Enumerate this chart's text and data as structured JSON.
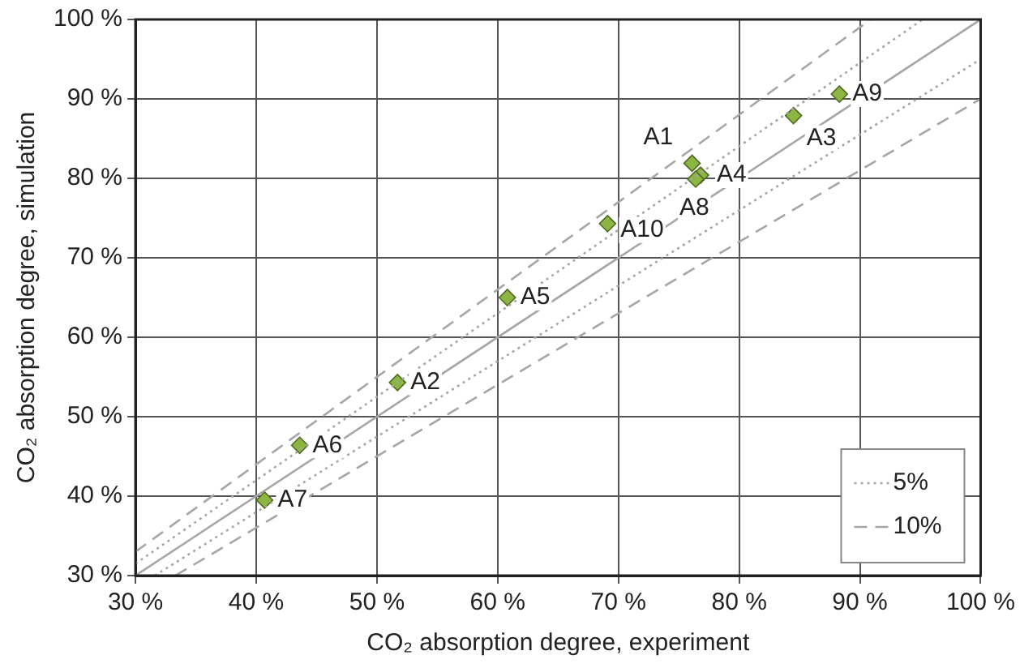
{
  "chart_data": {
    "type": "scatter",
    "xlabel": "CO₂ absorption degree, experiment",
    "ylabel": "CO₂ absorption degree, simulation",
    "xlim": [
      30,
      100
    ],
    "ylim": [
      30,
      100
    ],
    "xticks": [
      {
        "value": 30,
        "label": "30 %"
      },
      {
        "value": 40,
        "label": "40 %"
      },
      {
        "value": 50,
        "label": "50 %"
      },
      {
        "value": 60,
        "label": "60 %"
      },
      {
        "value": 70,
        "label": "70 %"
      },
      {
        "value": 80,
        "label": "80 %"
      },
      {
        "value": 90,
        "label": "90 %"
      },
      {
        "value": 100,
        "label": "100 %"
      }
    ],
    "yticks": [
      {
        "value": 30,
        "label": "30 %"
      },
      {
        "value": 40,
        "label": "40 %"
      },
      {
        "value": 50,
        "label": "50 %"
      },
      {
        "value": 60,
        "label": "60 %"
      },
      {
        "value": 70,
        "label": "70 %"
      },
      {
        "value": 80,
        "label": "80 %"
      },
      {
        "value": 90,
        "label": "90 %"
      },
      {
        "value": 100,
        "label": "100 %"
      }
    ],
    "grid": true,
    "legend": "bottom right",
    "marker": "diamond",
    "series": [
      {
        "type": "line",
        "color": "#a6a6a6",
        "line_style": "solid",
        "marker": "none",
        "x": [
          30,
          100
        ],
        "values": [
          30,
          100
        ]
      },
      {
        "type": "line",
        "name": "5%",
        "color": "#a6a6a6",
        "line_style": "dotted",
        "marker": "none",
        "x": [
          30,
          95.2
        ],
        "values": [
          31.5,
          100
        ]
      },
      {
        "type": "line",
        "color": "#a6a6a6",
        "line_style": "dotted",
        "marker": "none",
        "x": [
          31.6,
          100
        ],
        "values": [
          30,
          95
        ]
      },
      {
        "type": "line",
        "name": "10%",
        "color": "#a6a6a6",
        "line_style": "dashed",
        "marker": "none",
        "x": [
          30,
          90.9
        ],
        "values": [
          33,
          100
        ]
      },
      {
        "type": "line",
        "color": "#a6a6a6",
        "line_style": "dashed",
        "marker": "none",
        "x": [
          33.3,
          100
        ],
        "values": [
          30,
          90
        ]
      },
      {
        "color": "#8db543",
        "x": [
          76.1,
          51.7,
          84.5,
          76.8,
          60.8,
          43.6,
          40.7,
          76.4,
          88.3,
          69.1
        ],
        "values": [
          81.9,
          54.3,
          87.9,
          80.4,
          65.0,
          46.4,
          39.5,
          79.9,
          90.6,
          74.3
        ]
      }
    ],
    "annotations": [
      {
        "text": "A1",
        "x": 76.1,
        "y": 81.9
      },
      {
        "text": "A2",
        "x": 51.7,
        "y": 54.3
      },
      {
        "text": "A3",
        "x": 84.5,
        "y": 87.9
      },
      {
        "text": "A4",
        "x": 76.8,
        "y": 80.4
      },
      {
        "text": "A5",
        "x": 60.8,
        "y": 65.0
      },
      {
        "text": "A6",
        "x": 43.6,
        "y": 46.4
      },
      {
        "text": "A7",
        "x": 40.7,
        "y": 39.5
      },
      {
        "text": "A8",
        "x": 76.4,
        "y": 79.9
      },
      {
        "text": "A9",
        "x": 88.3,
        "y": 90.6
      },
      {
        "text": "A10",
        "x": 69.1,
        "y": 74.3
      }
    ]
  }
}
